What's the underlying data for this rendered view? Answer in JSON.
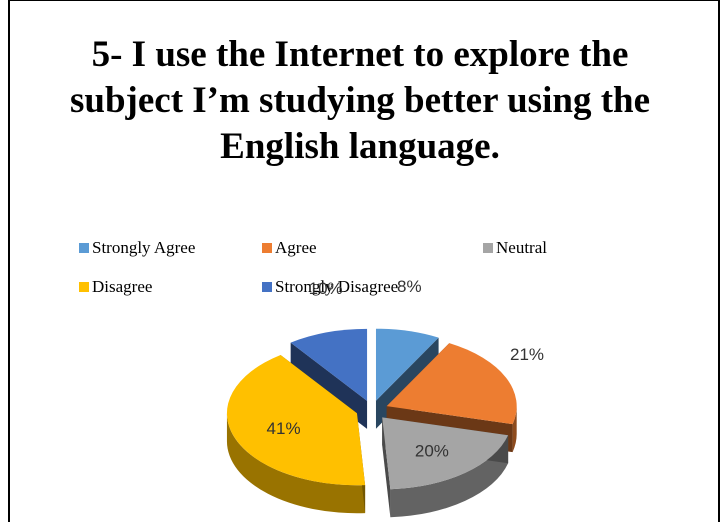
{
  "chart_data": {
    "type": "pie",
    "title": "5- I use the Internet to explore the subject I’m studying better using the English language.",
    "categories": [
      "Strongly Agree",
      "Agree",
      "Neutral",
      "Disagree",
      "Strongly Disagree"
    ],
    "values": [
      8,
      21,
      20,
      41,
      10
    ],
    "value_labels": [
      "8%",
      "21%",
      "20%",
      "41%",
      "10%"
    ],
    "colors": [
      "#5B9BD5",
      "#ED7D31",
      "#A5A5A5",
      "#FFC000",
      "#4472C4"
    ],
    "legend_position": "top",
    "style": "3d-exploded"
  }
}
